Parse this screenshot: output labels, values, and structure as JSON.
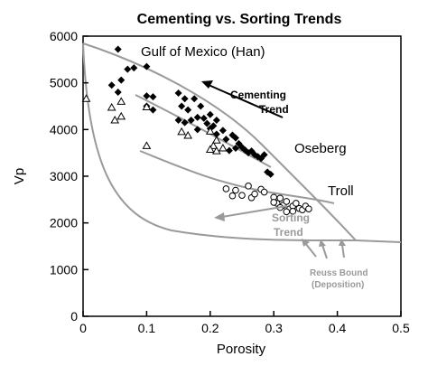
{
  "chart_data": {
    "type": "scatter",
    "title": "Cementing vs. Sorting Trends",
    "xlabel": "Porosity",
    "ylabel": "Vp",
    "xlim": [
      0,
      0.5
    ],
    "ylim": [
      0,
      6000
    ],
    "xticks": [
      "0",
      "0.1",
      "0.2",
      "0.3",
      "0.4",
      "0.5"
    ],
    "yticks": [
      "0",
      "1000",
      "2000",
      "3000",
      "4000",
      "5000",
      "6000"
    ],
    "grid": false,
    "colors": {
      "filled": "#000000",
      "open": "#000000",
      "curves": "#9a9a9a",
      "axes": "#000000"
    },
    "labels": {
      "gulf": "Gulf of Mexico (Han)",
      "oseberg": "Oseberg",
      "troll": "Troll",
      "cementing_1": "Cementing",
      "cementing_2": "Trend",
      "sorting_1": "Sorting",
      "sorting_2": "Trend",
      "reuss_1": "Reuss Bound",
      "reuss_2": "(Deposition)"
    },
    "series": [
      {
        "marker": "filled-diamond",
        "points": [
          [
            0.055,
            5720
          ],
          [
            0.07,
            5290
          ],
          [
            0.08,
            5320
          ],
          [
            0.06,
            5060
          ],
          [
            0.055,
            4800
          ],
          [
            0.1,
            5350
          ],
          [
            0.045,
            4950
          ],
          [
            0.1,
            4720
          ],
          [
            0.11,
            4700
          ],
          [
            0.1,
            4500
          ],
          [
            0.11,
            4420
          ],
          [
            0.15,
            4780
          ],
          [
            0.16,
            4660
          ],
          [
            0.155,
            4500
          ],
          [
            0.175,
            4660
          ],
          [
            0.165,
            4420
          ],
          [
            0.15,
            4200
          ],
          [
            0.16,
            4150
          ],
          [
            0.17,
            4200
          ],
          [
            0.18,
            4260
          ],
          [
            0.19,
            4240
          ],
          [
            0.2,
            4320
          ],
          [
            0.185,
            4500
          ],
          [
            0.195,
            4130
          ],
          [
            0.205,
            4080
          ],
          [
            0.18,
            4000
          ],
          [
            0.21,
            3900
          ],
          [
            0.22,
            3980
          ],
          [
            0.225,
            3790
          ],
          [
            0.235,
            3880
          ],
          [
            0.24,
            3820
          ],
          [
            0.245,
            3700
          ],
          [
            0.25,
            3620
          ],
          [
            0.255,
            3560
          ],
          [
            0.26,
            3500
          ],
          [
            0.27,
            3460
          ],
          [
            0.275,
            3420
          ],
          [
            0.28,
            3380
          ],
          [
            0.265,
            3540
          ],
          [
            0.285,
            3460
          ],
          [
            0.23,
            3550
          ],
          [
            0.24,
            3600
          ],
          [
            0.29,
            3090
          ],
          [
            0.295,
            3040
          ],
          [
            0.2,
            4020
          ],
          [
            0.21,
            4200
          ]
        ]
      },
      {
        "marker": "open-triangle",
        "points": [
          [
            0.005,
            4660
          ],
          [
            0.045,
            4470
          ],
          [
            0.06,
            4600
          ],
          [
            0.06,
            4280
          ],
          [
            0.05,
            4200
          ],
          [
            0.1,
            4480
          ],
          [
            0.1,
            3650
          ],
          [
            0.155,
            3950
          ],
          [
            0.165,
            3870
          ],
          [
            0.2,
            3960
          ],
          [
            0.21,
            3770
          ],
          [
            0.205,
            3650
          ],
          [
            0.2,
            3570
          ],
          [
            0.21,
            3540
          ],
          [
            0.22,
            3600
          ]
        ]
      },
      {
        "marker": "open-circle",
        "points": [
          [
            0.225,
            2730
          ],
          [
            0.235,
            2580
          ],
          [
            0.24,
            2700
          ],
          [
            0.25,
            2590
          ],
          [
            0.26,
            2790
          ],
          [
            0.265,
            2540
          ],
          [
            0.27,
            2620
          ],
          [
            0.28,
            2720
          ],
          [
            0.285,
            2660
          ],
          [
            0.3,
            2550
          ],
          [
            0.305,
            2420
          ],
          [
            0.31,
            2530
          ],
          [
            0.315,
            2380
          ],
          [
            0.32,
            2460
          ],
          [
            0.325,
            2300
          ],
          [
            0.33,
            2360
          ],
          [
            0.335,
            2420
          ],
          [
            0.34,
            2310
          ],
          [
            0.345,
            2280
          ],
          [
            0.35,
            2360
          ],
          [
            0.355,
            2300
          ],
          [
            0.33,
            2250
          ],
          [
            0.32,
            2240
          ],
          [
            0.31,
            2330
          ],
          [
            0.3,
            2440
          ]
        ]
      }
    ]
  }
}
